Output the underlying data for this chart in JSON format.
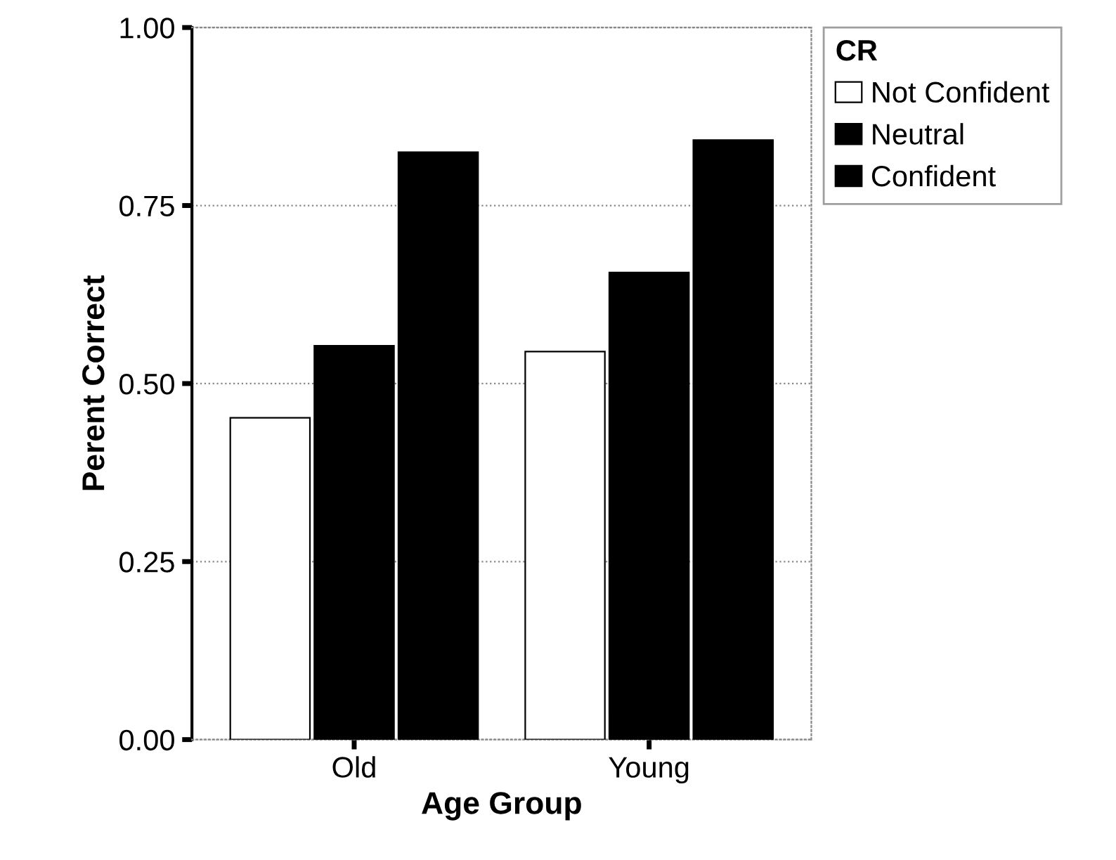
{
  "chart_data": {
    "type": "bar",
    "xlabel": "Age Group",
    "ylabel": "Perent Correct",
    "legend_title": "CR",
    "categories": [
      "Old",
      "Young"
    ],
    "series": [
      {
        "name": "Not Confident",
        "color": "#ffffff",
        "values": [
          0.452,
          0.545
        ]
      },
      {
        "name": "Neutral",
        "color": "#000000",
        "values": [
          0.553,
          0.656
        ]
      },
      {
        "name": "Confident",
        "color": "#000000",
        "values": [
          0.825,
          0.842
        ]
      }
    ],
    "ylim": [
      0,
      1
    ],
    "yticks": [
      {
        "value": 0,
        "label": "0.00"
      },
      {
        "value": 0.25,
        "label": "0.25"
      },
      {
        "value": 0.5,
        "label": "0.50"
      },
      {
        "value": 0.75,
        "label": "0.75"
      },
      {
        "value": 1,
        "label": "1.00"
      }
    ],
    "grid": "y",
    "legend": "top right"
  }
}
